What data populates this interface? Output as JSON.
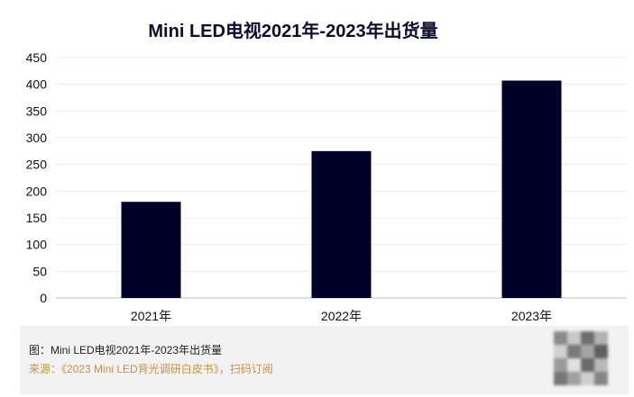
{
  "chart_data": {
    "type": "bar",
    "title": "Mini LED电视2021年-2023年出货量",
    "categories": [
      "2021年",
      "2022年",
      "2023年"
    ],
    "values": [
      180,
      275,
      407
    ],
    "ylim": [
      0,
      450
    ],
    "yticks": [
      0,
      50,
      100,
      150,
      200,
      250,
      300,
      350,
      400,
      450
    ],
    "xlabel": "",
    "ylabel": "",
    "grid": true,
    "bar_color": "#000028"
  },
  "footer": {
    "caption": "图：Mini LED电视2021年-2023年出货量",
    "source": "来源：《2023 Mini LED背光调研白皮书》，扫码订阅",
    "qr_code": "qr-code-icon"
  }
}
